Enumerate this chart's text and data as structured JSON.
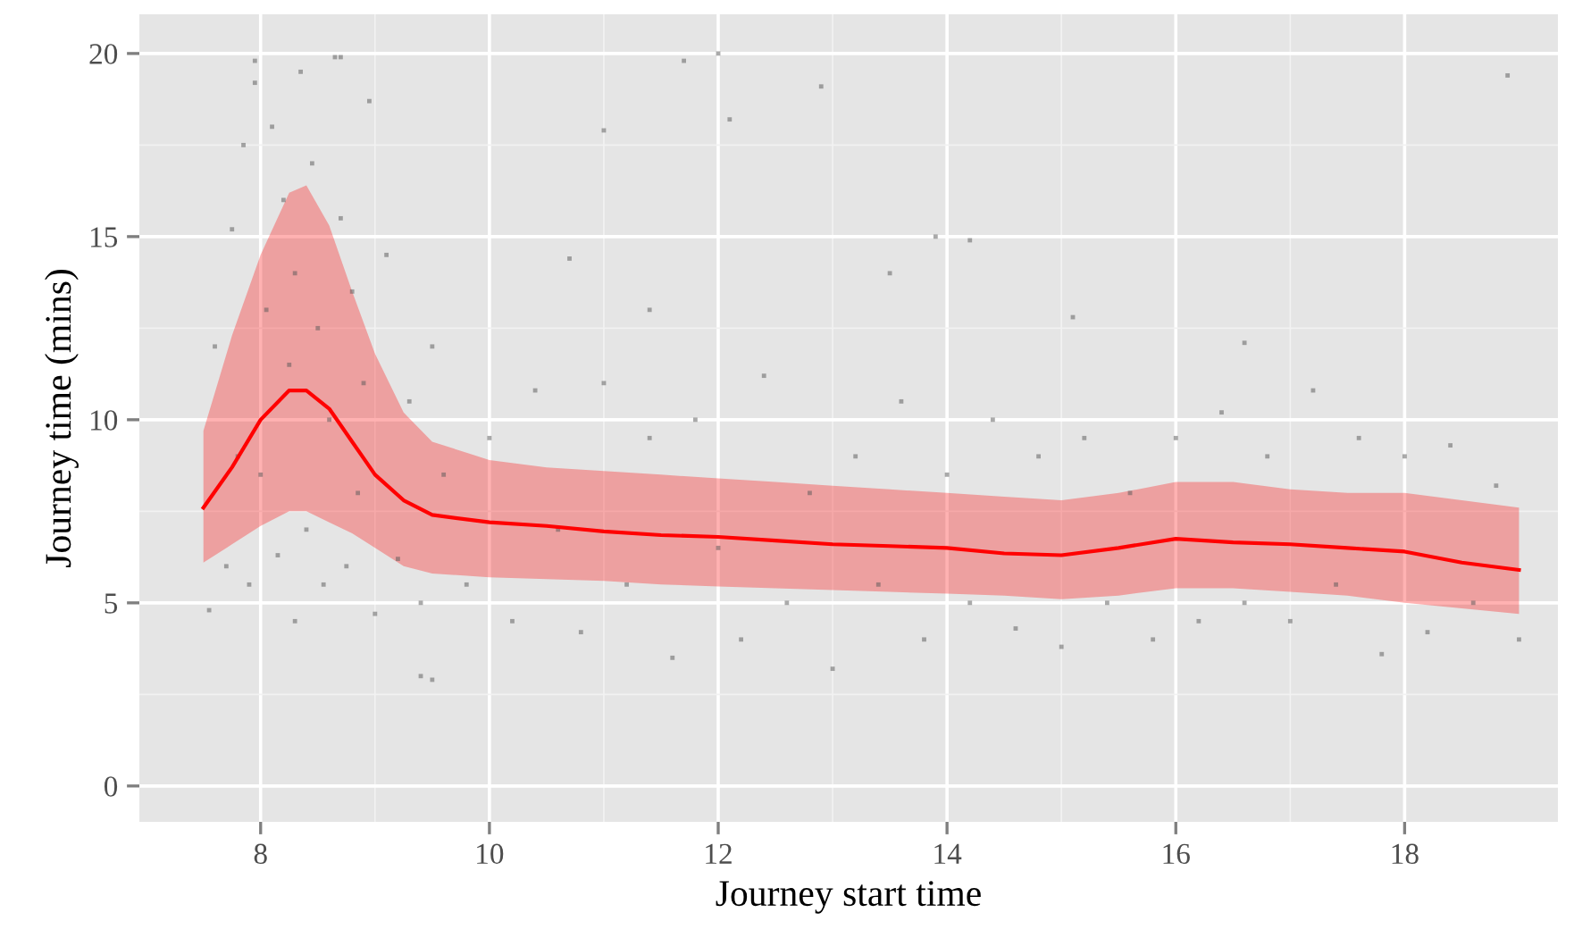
{
  "chart_data": {
    "type": "scatter",
    "xlabel": "Journey start time",
    "ylabel": "Journey time (mins)",
    "xlim": [
      6.94,
      19.34
    ],
    "ylim": [
      -0.98,
      21.07
    ],
    "xticks": [
      8,
      10,
      12,
      14,
      16,
      18
    ],
    "yticks": [
      0,
      5,
      10,
      15,
      20
    ],
    "grid": true,
    "series": [
      {
        "color": "#555555",
        "marker": "square",
        "x": [
          7.55,
          7.6,
          7.7,
          7.75,
          7.8,
          7.85,
          7.9,
          7.95,
          8.0,
          8.05,
          8.1,
          8.15,
          8.2,
          8.25,
          8.3,
          8.35,
          8.4,
          8.45,
          8.5,
          8.55,
          8.6,
          8.65,
          8.7,
          8.75,
          8.8,
          8.85,
          8.9,
          8.95,
          9.0,
          9.1,
          9.2,
          9.3,
          9.4,
          9.5,
          9.6,
          9.8,
          10.0,
          10.2,
          10.4,
          10.6,
          10.8,
          11.0,
          11.2,
          11.4,
          11.6,
          11.8,
          12.0,
          12.2,
          12.4,
          12.6,
          12.8,
          13.0,
          13.2,
          13.4,
          13.6,
          13.8,
          14.0,
          14.2,
          14.4,
          14.6,
          14.8,
          15.0,
          15.2,
          15.4,
          15.6,
          15.8,
          16.0,
          16.2,
          16.4,
          16.6,
          16.8,
          17.0,
          17.2,
          17.4,
          17.6,
          17.8,
          18.0,
          18.2,
          18.4,
          18.6,
          18.8,
          19.0,
          7.95,
          8.3,
          8.7,
          9.5,
          11.0,
          11.7,
          12.0,
          13.5,
          14.2,
          12.9,
          18.9,
          10.7,
          12.1,
          16.6,
          9.4,
          11.4,
          13.9,
          15.1
        ],
        "values": [
          4.8,
          12.0,
          6.0,
          15.2,
          9.0,
          17.5,
          5.5,
          19.8,
          8.5,
          13.0,
          18.0,
          6.3,
          16.0,
          11.5,
          14.0,
          19.5,
          7.0,
          17.0,
          12.5,
          5.5,
          10.0,
          19.9,
          15.5,
          6.0,
          13.5,
          8.0,
          11.0,
          18.7,
          4.7,
          14.5,
          6.2,
          10.5,
          5.0,
          12.0,
          8.5,
          5.5,
          9.5,
          4.5,
          10.8,
          7.0,
          4.2,
          11.0,
          5.5,
          9.5,
          3.5,
          10.0,
          6.5,
          4.0,
          11.2,
          5.0,
          8.0,
          3.2,
          9.0,
          5.5,
          10.5,
          4.0,
          8.5,
          5.0,
          10.0,
          4.3,
          9.0,
          3.8,
          9.5,
          5.0,
          8.0,
          4.0,
          9.5,
          4.5,
          10.2,
          5.0,
          9.0,
          4.5,
          10.8,
          5.5,
          9.5,
          3.6,
          9.0,
          4.2,
          9.3,
          5.0,
          8.2,
          4.0,
          19.2,
          4.5,
          19.9,
          2.9,
          17.9,
          19.8,
          20.0,
          14.0,
          14.9,
          19.1,
          19.4,
          14.4,
          18.2,
          12.1,
          3.0,
          13.0,
          15.0,
          12.8
        ]
      },
      {
        "type": "line",
        "color": "#ff0000",
        "x": [
          7.5,
          7.75,
          8.0,
          8.25,
          8.4,
          8.6,
          8.8,
          9.0,
          9.25,
          9.5,
          10,
          10.5,
          11,
          11.5,
          12,
          12.5,
          13,
          13.5,
          14,
          14.5,
          15,
          15.5,
          16,
          16.5,
          17,
          17.5,
          18,
          18.5,
          19
        ],
        "values": [
          7.6,
          8.7,
          10.0,
          10.8,
          10.8,
          10.3,
          9.4,
          8.5,
          7.8,
          7.4,
          7.2,
          7.1,
          6.95,
          6.85,
          6.8,
          6.7,
          6.6,
          6.55,
          6.5,
          6.35,
          6.3,
          6.5,
          6.75,
          6.65,
          6.6,
          6.5,
          6.4,
          6.1,
          5.9
        ],
        "upper": [
          9.7,
          12.3,
          14.5,
          16.2,
          16.4,
          15.3,
          13.5,
          11.8,
          10.2,
          9.4,
          8.9,
          8.7,
          8.6,
          8.5,
          8.4,
          8.3,
          8.2,
          8.1,
          8.0,
          7.9,
          7.8,
          8.0,
          8.3,
          8.3,
          8.1,
          8.0,
          8.0,
          7.8,
          7.6
        ],
        "lower": [
          6.1,
          6.6,
          7.1,
          7.5,
          7.5,
          7.2,
          6.9,
          6.5,
          6.0,
          5.8,
          5.7,
          5.65,
          5.6,
          5.5,
          5.45,
          5.4,
          5.35,
          5.3,
          5.25,
          5.2,
          5.1,
          5.2,
          5.4,
          5.4,
          5.3,
          5.2,
          5.0,
          4.85,
          4.7
        ]
      }
    ]
  }
}
